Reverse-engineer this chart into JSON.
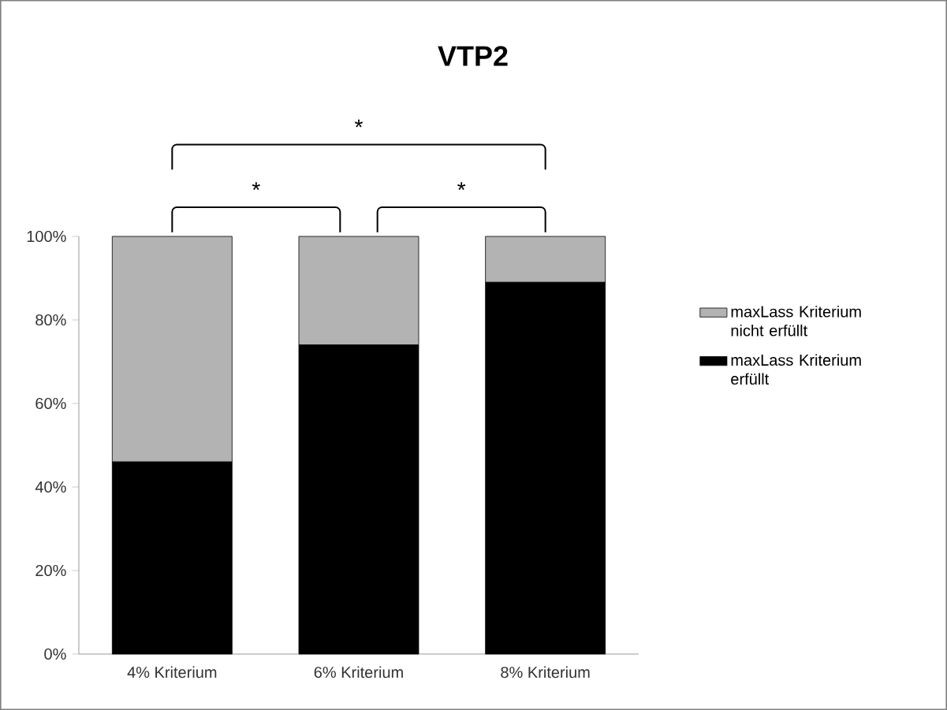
{
  "chart_data": {
    "type": "bar",
    "title": "VTP2",
    "stacked": true,
    "categories": [
      "4% Kriterium",
      "6% Kriterium",
      "8% Kriterium"
    ],
    "series": [
      {
        "name": "maxLass Kriterium erfüllt",
        "color": "#000000",
        "values": [
          46,
          74,
          89
        ]
      },
      {
        "name": "maxLass Kriterium nicht erfüllt",
        "color": "#b3b3b3",
        "values": [
          54,
          26,
          11
        ]
      }
    ],
    "ylim": [
      0,
      100
    ],
    "yticks": [
      {
        "value": 0,
        "label": "0%"
      },
      {
        "value": 20,
        "label": "20%"
      },
      {
        "value": 40,
        "label": "40%"
      },
      {
        "value": 60,
        "label": "60%"
      },
      {
        "value": 80,
        "label": "80%"
      },
      {
        "value": 100,
        "label": "100%"
      }
    ],
    "legend": "right",
    "grid": false,
    "annotations": [
      "*",
      "*",
      "*"
    ]
  }
}
